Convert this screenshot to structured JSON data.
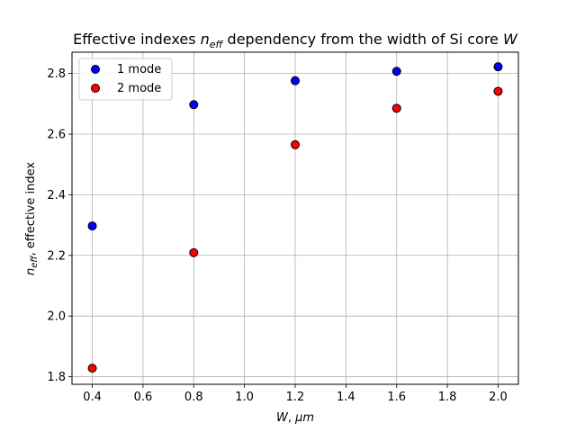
{
  "chart_data": {
    "type": "scatter",
    "title": {
      "prefix": "Effective indexes ",
      "var": "n",
      "sub": "eff",
      "middle": " dependency from the width of Si core ",
      "var2": "W"
    },
    "xlabel": {
      "var": "W",
      "sep": ", ",
      "unit": "μm"
    },
    "ylabel": {
      "var": "n",
      "sub": "eff",
      "rest": ", effective index"
    },
    "xlim": [
      0.32,
      2.08
    ],
    "ylim": [
      1.775,
      2.87
    ],
    "xticks": [
      "0.4",
      "0.6",
      "0.8",
      "1.0",
      "1.2",
      "1.4",
      "1.6",
      "1.8",
      "2.0"
    ],
    "yticks": [
      "1.8",
      "2.0",
      "2.2",
      "2.4",
      "2.6",
      "2.8"
    ],
    "grid": true,
    "legend_placement": "top-left",
    "series": [
      {
        "name": "1 mode",
        "color": "#0000ff",
        "x": [
          0.4,
          0.8,
          1.2,
          1.6,
          2.0
        ],
        "y": [
          2.297,
          2.697,
          2.776,
          2.807,
          2.822
        ]
      },
      {
        "name": "2 mode",
        "color": "#ff0000",
        "x": [
          0.4,
          0.8,
          1.2,
          1.6,
          2.0
        ],
        "y": [
          1.828,
          2.209,
          2.565,
          2.685,
          2.741
        ]
      }
    ]
  }
}
